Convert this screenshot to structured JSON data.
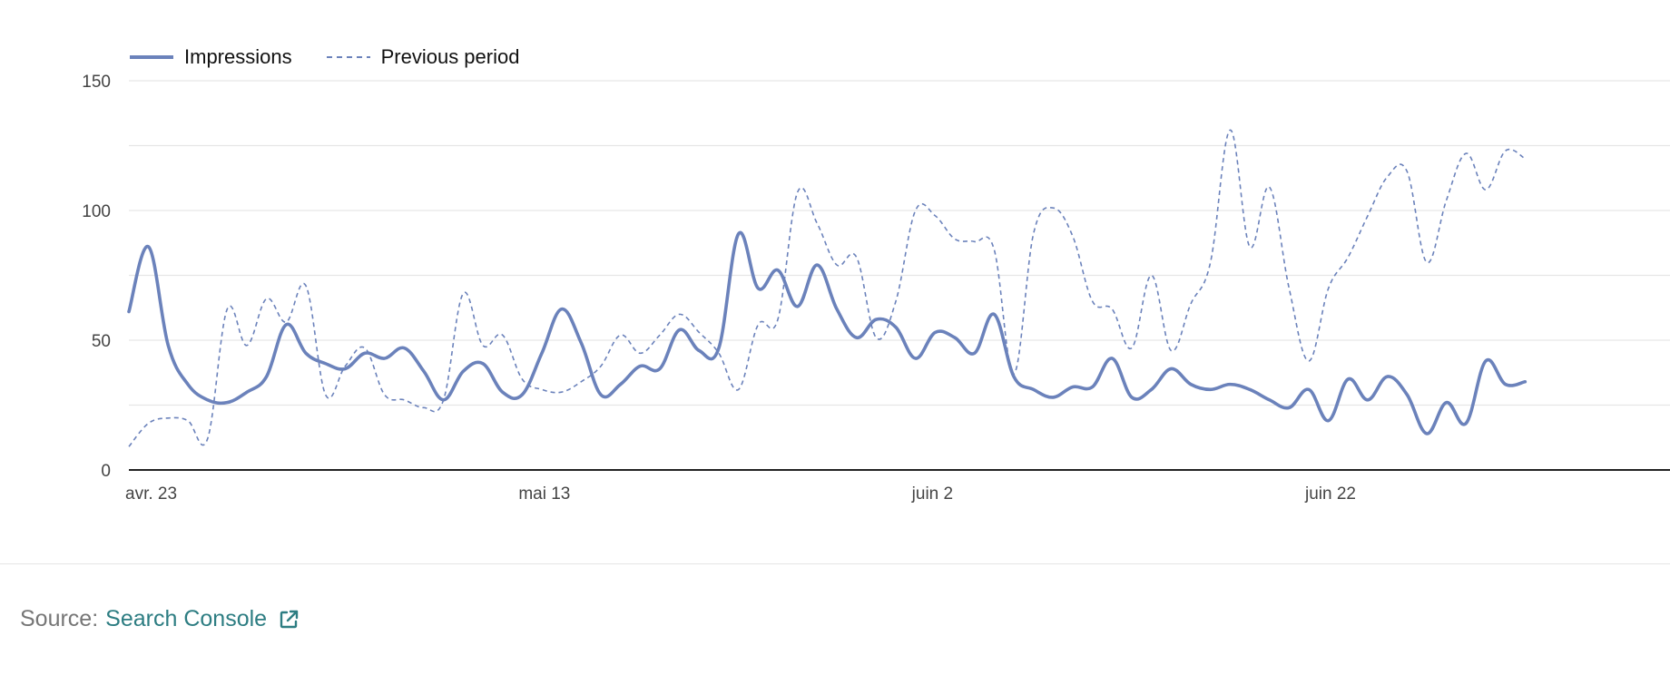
{
  "legend": {
    "current_label": "Impressions",
    "previous_label": "Previous period"
  },
  "footer": {
    "source_prefix": "Source:",
    "source_link": "Search Console",
    "link_icon": "external-link-icon"
  },
  "colors": {
    "series": "#6b82bb",
    "grid": "#e6e6e6",
    "axis": "#222222",
    "link": "#2d7d82"
  },
  "chart_data": {
    "type": "line",
    "title": "",
    "xlabel": "",
    "ylabel": "",
    "ylim": [
      0,
      150
    ],
    "yticks": [
      0,
      50,
      100,
      150
    ],
    "grid": true,
    "legend_position": "top-left",
    "x_range": [
      "2024-04-23",
      "2024-07-01"
    ],
    "x_ticks": [
      {
        "date": "2024-04-23",
        "label": "avr. 23"
      },
      {
        "date": "2024-05-13",
        "label": "mai 13"
      },
      {
        "date": "2024-06-02",
        "label": "juin 2"
      },
      {
        "date": "2024-06-22",
        "label": "juin 22"
      }
    ],
    "series": [
      {
        "name": "Impressions",
        "style": "solid",
        "points": [
          [
            "2024-04-23",
            61
          ],
          [
            "2024-04-24",
            86
          ],
          [
            "2024-04-25",
            48
          ],
          [
            "2024-04-26",
            33
          ],
          [
            "2024-04-27",
            27
          ],
          [
            "2024-04-28",
            26
          ],
          [
            "2024-04-29",
            30
          ],
          [
            "2024-04-30",
            36
          ],
          [
            "2024-05-01",
            56
          ],
          [
            "2024-05-02",
            45
          ],
          [
            "2024-05-03",
            41
          ],
          [
            "2024-05-04",
            39
          ],
          [
            "2024-05-05",
            45
          ],
          [
            "2024-05-06",
            43
          ],
          [
            "2024-05-07",
            47
          ],
          [
            "2024-05-08",
            38
          ],
          [
            "2024-05-09",
            27
          ],
          [
            "2024-05-10",
            38
          ],
          [
            "2024-05-11",
            41
          ],
          [
            "2024-05-12",
            30
          ],
          [
            "2024-05-13",
            29
          ],
          [
            "2024-05-14",
            45
          ],
          [
            "2024-05-15",
            62
          ],
          [
            "2024-05-16",
            49
          ],
          [
            "2024-05-17",
            29
          ],
          [
            "2024-05-18",
            33
          ],
          [
            "2024-05-19",
            40
          ],
          [
            "2024-05-20",
            39
          ],
          [
            "2024-05-21",
            54
          ],
          [
            "2024-05-22",
            46
          ],
          [
            "2024-05-23",
            47
          ],
          [
            "2024-05-24",
            91
          ],
          [
            "2024-05-25",
            70
          ],
          [
            "2024-05-26",
            77
          ],
          [
            "2024-05-27",
            63
          ],
          [
            "2024-05-28",
            79
          ],
          [
            "2024-05-29",
            62
          ],
          [
            "2024-05-30",
            51
          ],
          [
            "2024-05-31",
            58
          ],
          [
            "2024-06-01",
            55
          ],
          [
            "2024-06-02",
            43
          ],
          [
            "2024-06-03",
            53
          ],
          [
            "2024-06-04",
            51
          ],
          [
            "2024-06-05",
            45
          ],
          [
            "2024-06-06",
            60
          ],
          [
            "2024-06-07",
            36
          ],
          [
            "2024-06-08",
            31
          ],
          [
            "2024-06-09",
            28
          ],
          [
            "2024-06-10",
            32
          ],
          [
            "2024-06-11",
            32
          ],
          [
            "2024-06-12",
            43
          ],
          [
            "2024-06-13",
            28
          ],
          [
            "2024-06-14",
            31
          ],
          [
            "2024-06-15",
            39
          ],
          [
            "2024-06-16",
            33
          ],
          [
            "2024-06-17",
            31
          ],
          [
            "2024-06-18",
            33
          ],
          [
            "2024-06-19",
            31
          ],
          [
            "2024-06-20",
            27
          ],
          [
            "2024-06-21",
            24
          ],
          [
            "2024-06-22",
            31
          ],
          [
            "2024-06-23",
            19
          ],
          [
            "2024-06-24",
            35
          ],
          [
            "2024-06-25",
            27
          ],
          [
            "2024-06-26",
            36
          ],
          [
            "2024-06-27",
            29
          ],
          [
            "2024-06-28",
            14
          ],
          [
            "2024-06-29",
            26
          ],
          [
            "2024-06-30",
            18
          ],
          [
            "2024-07-01",
            42
          ],
          [
            "2024-07-02",
            33
          ],
          [
            "2024-07-03",
            34
          ]
        ]
      },
      {
        "name": "Previous period",
        "style": "dashed",
        "points": [
          [
            "2024-04-23",
            9
          ],
          [
            "2024-04-24",
            18
          ],
          [
            "2024-04-25",
            20
          ],
          [
            "2024-04-26",
            19
          ],
          [
            "2024-04-27",
            12
          ],
          [
            "2024-04-28",
            62
          ],
          [
            "2024-04-29",
            48
          ],
          [
            "2024-04-30",
            66
          ],
          [
            "2024-05-01",
            57
          ],
          [
            "2024-05-02",
            71
          ],
          [
            "2024-05-03",
            29
          ],
          [
            "2024-05-04",
            40
          ],
          [
            "2024-05-05",
            47
          ],
          [
            "2024-05-06",
            29
          ],
          [
            "2024-05-07",
            27
          ],
          [
            "2024-05-08",
            24
          ],
          [
            "2024-05-09",
            27
          ],
          [
            "2024-05-10",
            68
          ],
          [
            "2024-05-11",
            48
          ],
          [
            "2024-05-12",
            52
          ],
          [
            "2024-05-13",
            35
          ],
          [
            "2024-05-14",
            31
          ],
          [
            "2024-05-15",
            30
          ],
          [
            "2024-05-16",
            34
          ],
          [
            "2024-05-17",
            40
          ],
          [
            "2024-05-18",
            52
          ],
          [
            "2024-05-19",
            45
          ],
          [
            "2024-05-20",
            52
          ],
          [
            "2024-05-21",
            60
          ],
          [
            "2024-05-22",
            53
          ],
          [
            "2024-05-23",
            45
          ],
          [
            "2024-05-24",
            31
          ],
          [
            "2024-05-25",
            56
          ],
          [
            "2024-05-26",
            58
          ],
          [
            "2024-05-27",
            107
          ],
          [
            "2024-05-28",
            95
          ],
          [
            "2024-05-29",
            79
          ],
          [
            "2024-05-30",
            82
          ],
          [
            "2024-05-31",
            51
          ],
          [
            "2024-06-01",
            65
          ],
          [
            "2024-06-02",
            100
          ],
          [
            "2024-06-03",
            98
          ],
          [
            "2024-06-04",
            89
          ],
          [
            "2024-06-05",
            88
          ],
          [
            "2024-06-06",
            85
          ],
          [
            "2024-06-07",
            37
          ],
          [
            "2024-06-08",
            91
          ],
          [
            "2024-06-09",
            101
          ],
          [
            "2024-06-10",
            90
          ],
          [
            "2024-06-11",
            65
          ],
          [
            "2024-06-12",
            62
          ],
          [
            "2024-06-13",
            47
          ],
          [
            "2024-06-14",
            75
          ],
          [
            "2024-06-15",
            46
          ],
          [
            "2024-06-16",
            64
          ],
          [
            "2024-06-17",
            80
          ],
          [
            "2024-06-18",
            131
          ],
          [
            "2024-06-19",
            86
          ],
          [
            "2024-06-20",
            109
          ],
          [
            "2024-06-21",
            70
          ],
          [
            "2024-06-22",
            42
          ],
          [
            "2024-06-23",
            70
          ],
          [
            "2024-06-24",
            82
          ],
          [
            "2024-06-25",
            98
          ],
          [
            "2024-06-26",
            113
          ],
          [
            "2024-06-27",
            115
          ],
          [
            "2024-06-28",
            80
          ],
          [
            "2024-06-29",
            104
          ],
          [
            "2024-06-30",
            122
          ],
          [
            "2024-07-01",
            108
          ],
          [
            "2024-07-02",
            123
          ],
          [
            "2024-07-03",
            120
          ]
        ]
      }
    ]
  }
}
